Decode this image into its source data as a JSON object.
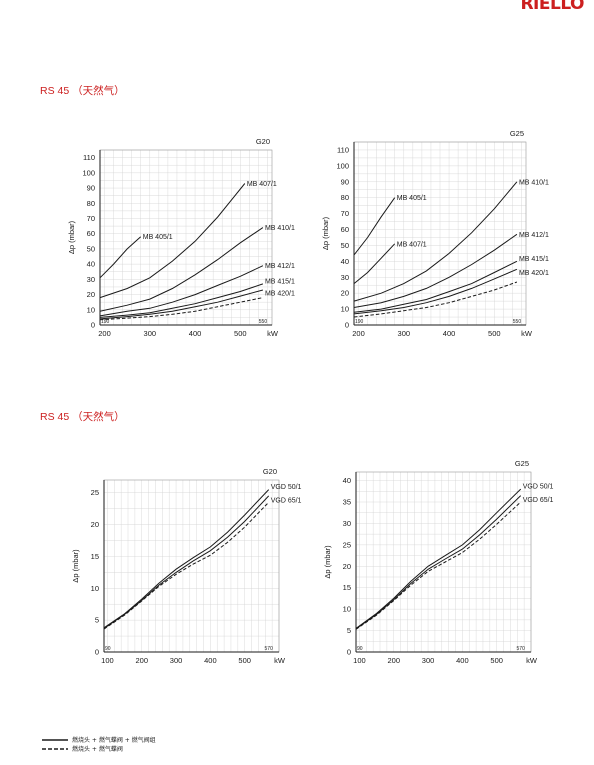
{
  "header": {
    "logo_text": "RIELLO",
    "brand_color": "#cc1f1f"
  },
  "sections": [
    {
      "title": "RS 45 （天然气）"
    },
    {
      "title": "RS 45 （天然气）"
    }
  ],
  "legend": {
    "items": [
      {
        "label": "燃烧头 + 燃气蝶阀 + 燃气阀组",
        "style": "solid"
      },
      {
        "label": "燃烧头 + 燃气蝶阀",
        "style": "dashed"
      }
    ]
  },
  "chart_data": [
    {
      "type": "line",
      "title": "G20",
      "xlabel": "kW",
      "ylabel": "Δp (mbar)",
      "xlim": [
        190,
        570
      ],
      "ylim": [
        0,
        115
      ],
      "x_ticks": [
        200,
        300,
        400,
        500
      ],
      "y_ticks": [
        0,
        10,
        20,
        30,
        40,
        50,
        60,
        70,
        80,
        90,
        100,
        110
      ],
      "range_marks": [
        "190",
        "550"
      ],
      "grid": true,
      "series": [
        {
          "name": "MB 407/1",
          "style": "solid",
          "points": [
            [
              190,
              18
            ],
            [
              250,
              24
            ],
            [
              300,
              31
            ],
            [
              350,
              42
            ],
            [
              400,
              55
            ],
            [
              450,
              71
            ],
            [
              480,
              82
            ],
            [
              510,
              93
            ]
          ]
        },
        {
          "name": "MB 405/1",
          "style": "solid",
          "points": [
            [
              190,
              31
            ],
            [
              220,
              40
            ],
            [
              250,
              50
            ],
            [
              280,
              58
            ]
          ]
        },
        {
          "name": "MB 410/1",
          "style": "solid",
          "points": [
            [
              190,
              9
            ],
            [
              250,
              13
            ],
            [
              300,
              17
            ],
            [
              350,
              24
            ],
            [
              400,
              33
            ],
            [
              450,
              43
            ],
            [
              500,
              54
            ],
            [
              550,
              64
            ]
          ]
        },
        {
          "name": "MB 412/1",
          "style": "solid",
          "points": [
            [
              190,
              6
            ],
            [
              250,
              9
            ],
            [
              300,
              11
            ],
            [
              350,
              15
            ],
            [
              400,
              20
            ],
            [
              450,
              26
            ],
            [
              500,
              32
            ],
            [
              550,
              39
            ]
          ]
        },
        {
          "name": "MB 415/1",
          "style": "solid",
          "points": [
            [
              190,
              5
            ],
            [
              250,
              6.5
            ],
            [
              300,
              8
            ],
            [
              350,
              11
            ],
            [
              400,
              14
            ],
            [
              450,
              18
            ],
            [
              500,
              22
            ],
            [
              550,
              27
            ]
          ]
        },
        {
          "name": "MB 420/1",
          "style": "solid",
          "points": [
            [
              190,
              4
            ],
            [
              250,
              5.5
            ],
            [
              300,
              7
            ],
            [
              350,
              9
            ],
            [
              400,
              12
            ],
            [
              450,
              15
            ],
            [
              500,
              19
            ],
            [
              550,
              23
            ]
          ]
        },
        {
          "name": "",
          "style": "dashed",
          "points": [
            [
              190,
              3.5
            ],
            [
              250,
              4.5
            ],
            [
              300,
              5.5
            ],
            [
              350,
              7
            ],
            [
              400,
              9
            ],
            [
              450,
              12
            ],
            [
              500,
              15
            ],
            [
              550,
              18
            ]
          ]
        }
      ]
    },
    {
      "type": "line",
      "title": "G25",
      "xlabel": "kW",
      "ylabel": "Δp (mbar)",
      "xlim": [
        190,
        570
      ],
      "ylim": [
        0,
        115
      ],
      "x_ticks": [
        200,
        300,
        400,
        500
      ],
      "y_ticks": [
        0,
        10,
        20,
        30,
        40,
        50,
        60,
        70,
        80,
        90,
        100,
        110
      ],
      "range_marks": [
        "190",
        "550"
      ],
      "grid": true,
      "series": [
        {
          "name": "MB 405/1",
          "style": "solid",
          "points": [
            [
              190,
              44
            ],
            [
              220,
              55
            ],
            [
              250,
              68
            ],
            [
              280,
              80
            ]
          ]
        },
        {
          "name": "MB 407/1",
          "style": "solid",
          "points": [
            [
              190,
              26
            ],
            [
              220,
              33
            ],
            [
              250,
              42
            ],
            [
              280,
              51
            ]
          ]
        },
        {
          "name": "MB 410/1",
          "style": "solid",
          "points": [
            [
              190,
              15
            ],
            [
              250,
              20
            ],
            [
              300,
              26
            ],
            [
              350,
              34
            ],
            [
              400,
              45
            ],
            [
              450,
              58
            ],
            [
              500,
              73
            ],
            [
              550,
              90
            ]
          ]
        },
        {
          "name": "MB 412/1",
          "style": "solid",
          "points": [
            [
              190,
              11
            ],
            [
              250,
              14
            ],
            [
              300,
              18
            ],
            [
              350,
              23
            ],
            [
              400,
              30
            ],
            [
              450,
              38
            ],
            [
              500,
              47
            ],
            [
              550,
              57
            ]
          ]
        },
        {
          "name": "MB 415/1",
          "style": "solid",
          "points": [
            [
              190,
              8
            ],
            [
              250,
              10
            ],
            [
              300,
              13
            ],
            [
              350,
              16
            ],
            [
              400,
              21
            ],
            [
              450,
              26
            ],
            [
              500,
              33
            ],
            [
              550,
              40
            ]
          ]
        },
        {
          "name": "MB 420/1",
          "style": "solid",
          "points": [
            [
              190,
              7
            ],
            [
              250,
              9
            ],
            [
              300,
              11
            ],
            [
              350,
              14
            ],
            [
              400,
              18
            ],
            [
              450,
              23
            ],
            [
              500,
              29
            ],
            [
              550,
              35
            ]
          ]
        },
        {
          "name": "",
          "style": "dashed",
          "points": [
            [
              190,
              5
            ],
            [
              250,
              7
            ],
            [
              300,
              9
            ],
            [
              350,
              11
            ],
            [
              400,
              14
            ],
            [
              450,
              18
            ],
            [
              500,
              22
            ],
            [
              550,
              27
            ]
          ]
        }
      ]
    },
    {
      "type": "line",
      "title": "G20",
      "xlabel": "kW",
      "ylabel": "Δp (mbar)",
      "xlim": [
        90,
        600
      ],
      "ylim": [
        0,
        27
      ],
      "x_ticks": [
        100,
        200,
        300,
        400,
        500
      ],
      "y_ticks": [
        0,
        5,
        10,
        15,
        20,
        25
      ],
      "range_marks": [
        "90",
        "570"
      ],
      "grid": true,
      "series": [
        {
          "name": "VGD 50/1",
          "style": "solid",
          "points": [
            [
              90,
              3.8
            ],
            [
              150,
              6
            ],
            [
              200,
              8.3
            ],
            [
              250,
              10.8
            ],
            [
              300,
              13
            ],
            [
              350,
              14.8
            ],
            [
              400,
              16.5
            ],
            [
              450,
              18.8
            ],
            [
              500,
              21.5
            ],
            [
              570,
              25.5
            ]
          ]
        },
        {
          "name": "VGD 65/1",
          "style": "solid",
          "points": [
            [
              90,
              3.7
            ],
            [
              150,
              5.9
            ],
            [
              200,
              8.1
            ],
            [
              250,
              10.5
            ],
            [
              300,
              12.5
            ],
            [
              350,
              14.3
            ],
            [
              400,
              15.9
            ],
            [
              450,
              18
            ],
            [
              500,
              20.5
            ],
            [
              570,
              24.5
            ]
          ]
        },
        {
          "name": "",
          "style": "dashed",
          "points": [
            [
              90,
              3.6
            ],
            [
              150,
              5.8
            ],
            [
              200,
              8
            ],
            [
              250,
              10.3
            ],
            [
              300,
              12.2
            ],
            [
              350,
              13.8
            ],
            [
              400,
              15.2
            ],
            [
              450,
              17.2
            ],
            [
              500,
              19.6
            ],
            [
              570,
              23.5
            ]
          ]
        }
      ]
    },
    {
      "type": "line",
      "title": "G25",
      "xlabel": "kW",
      "ylabel": "Δp (mbar)",
      "xlim": [
        90,
        600
      ],
      "ylim": [
        0,
        42
      ],
      "x_ticks": [
        100,
        200,
        300,
        400,
        500
      ],
      "y_ticks": [
        0,
        5,
        10,
        15,
        20,
        25,
        30,
        35,
        40
      ],
      "range_marks": [
        "90",
        "570"
      ],
      "grid": true,
      "series": [
        {
          "name": "VGD 50/1",
          "style": "solid",
          "points": [
            [
              90,
              5.5
            ],
            [
              150,
              9
            ],
            [
              200,
              12.5
            ],
            [
              250,
              16.5
            ],
            [
              300,
              20
            ],
            [
              350,
              22.5
            ],
            [
              400,
              25
            ],
            [
              450,
              28.5
            ],
            [
              500,
              32.5
            ],
            [
              570,
              38
            ]
          ]
        },
        {
          "name": "VGD 65/1",
          "style": "solid",
          "points": [
            [
              90,
              5.4
            ],
            [
              150,
              8.8
            ],
            [
              200,
              12.2
            ],
            [
              250,
              16
            ],
            [
              300,
              19.3
            ],
            [
              350,
              21.7
            ],
            [
              400,
              24
            ],
            [
              450,
              27.3
            ],
            [
              500,
              31
            ],
            [
              570,
              36.5
            ]
          ]
        },
        {
          "name": "",
          "style": "dashed",
          "points": [
            [
              90,
              5.3
            ],
            [
              150,
              8.6
            ],
            [
              200,
              12
            ],
            [
              250,
              15.6
            ],
            [
              300,
              18.8
            ],
            [
              350,
              21
            ],
            [
              400,
              23.2
            ],
            [
              450,
              26.3
            ],
            [
              500,
              29.8
            ],
            [
              570,
              35
            ]
          ]
        }
      ]
    }
  ]
}
